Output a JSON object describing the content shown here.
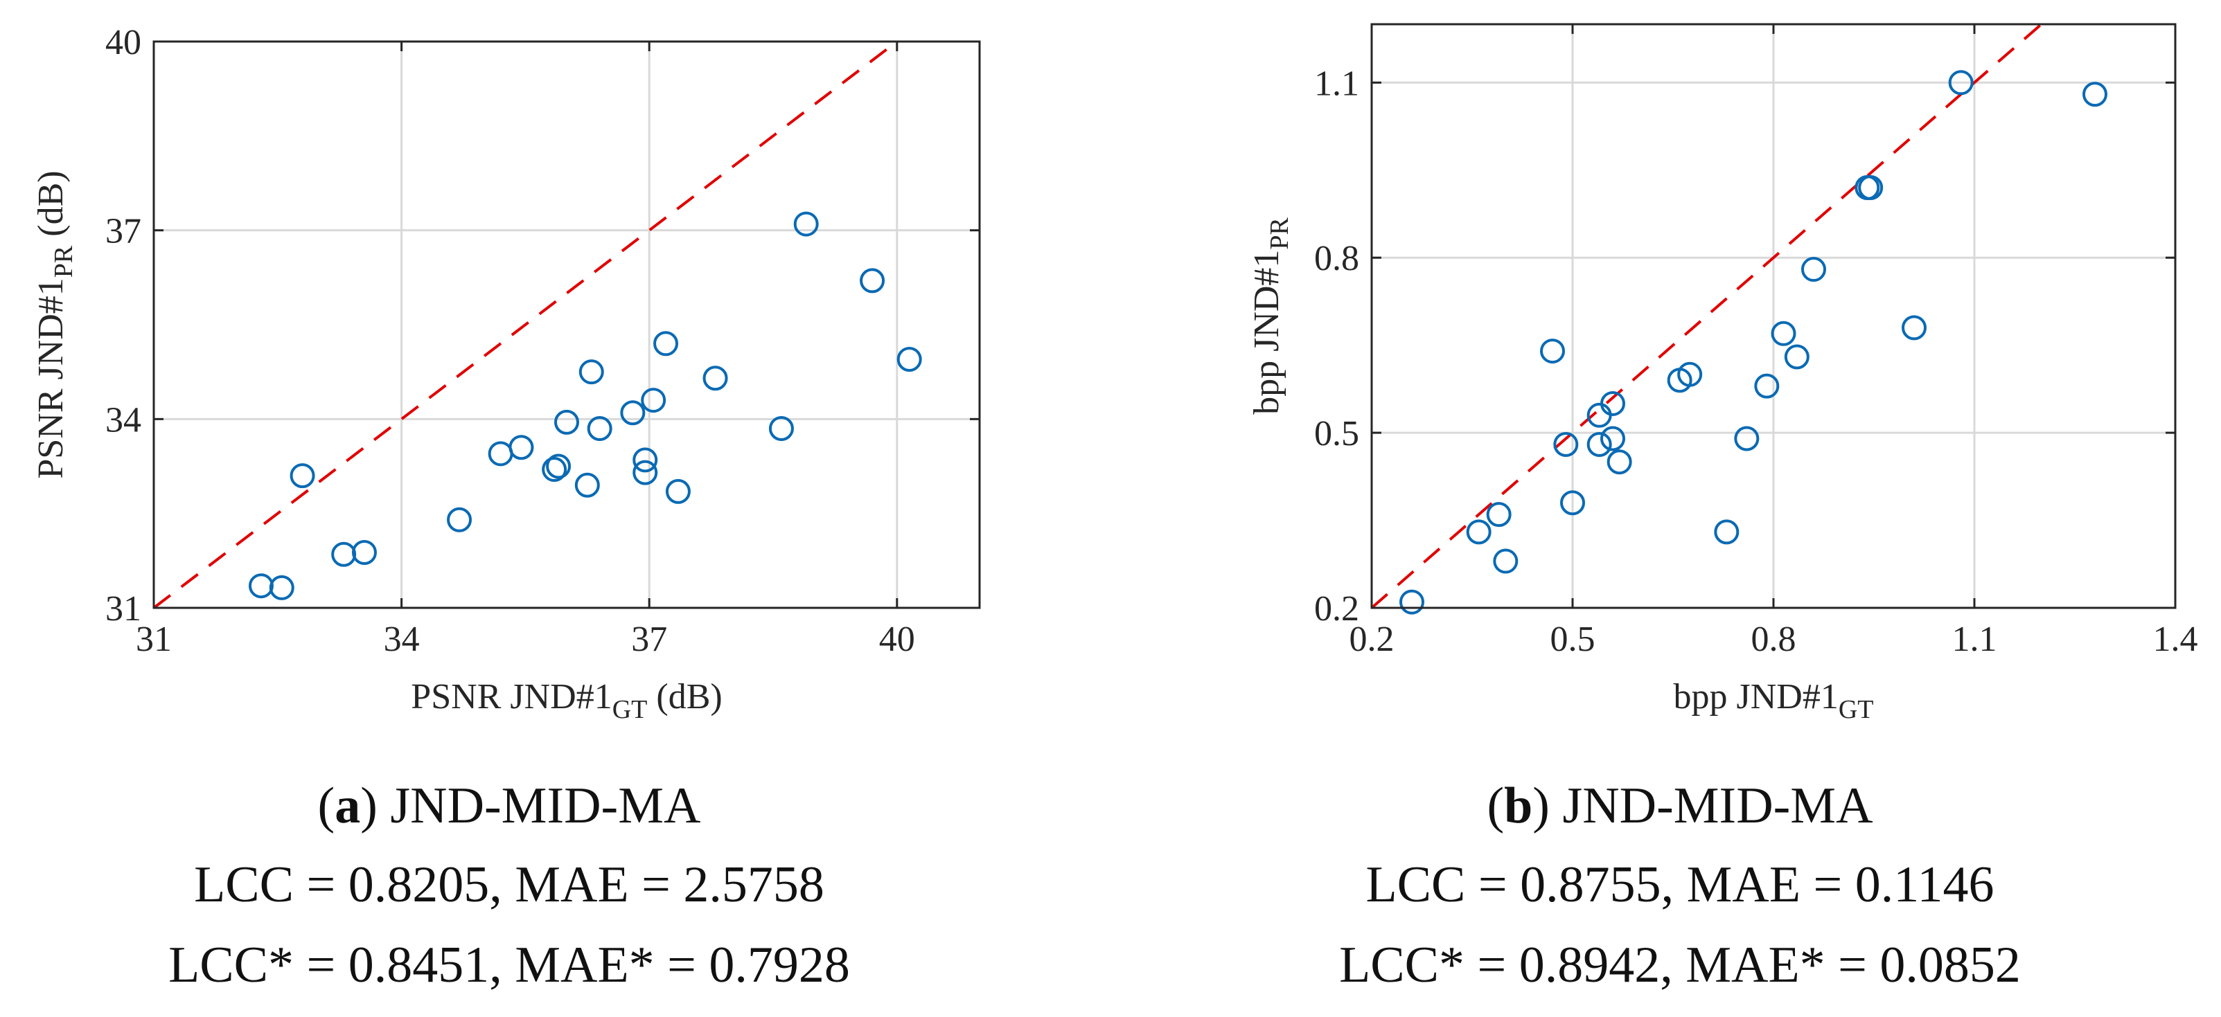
{
  "chart_data": [
    {
      "type": "scatter",
      "panel": "a",
      "caption_letter": "a",
      "caption_name": "JND-MID-MA",
      "stats_line1": "LCC = 0.8205, MAE = 2.5758",
      "stats_line2": "LCC* = 0.8451, MAE* = 0.7928",
      "xlabel_main": "PSNR JND#1",
      "xlabel_sub": "GT",
      "xlabel_suffix": " (dB)",
      "ylabel_main": "PSNR JND#1",
      "ylabel_sub": "PR",
      "ylabel_suffix": " (dB)",
      "xlim": [
        31,
        41
      ],
      "ylim": [
        31,
        40
      ],
      "xticks": [
        31,
        34,
        37,
        40
      ],
      "yticks": [
        31,
        34,
        37,
        40
      ],
      "xtick_labels": [
        "31",
        "34",
        "37",
        "40"
      ],
      "ytick_labels": [
        "31",
        "34",
        "37",
        "40"
      ],
      "grid": true,
      "reference_line": "y = x",
      "points": [
        {
          "x": 32.3,
          "y": 31.35
        },
        {
          "x": 32.55,
          "y": 31.32
        },
        {
          "x": 32.8,
          "y": 33.1
        },
        {
          "x": 33.3,
          "y": 31.85
        },
        {
          "x": 33.55,
          "y": 31.88
        },
        {
          "x": 34.7,
          "y": 32.4
        },
        {
          "x": 35.2,
          "y": 33.45
        },
        {
          "x": 35.45,
          "y": 33.55
        },
        {
          "x": 35.85,
          "y": 33.2
        },
        {
          "x": 35.9,
          "y": 33.25
        },
        {
          "x": 36.0,
          "y": 33.95
        },
        {
          "x": 36.25,
          "y": 32.95
        },
        {
          "x": 36.3,
          "y": 34.75
        },
        {
          "x": 36.4,
          "y": 33.85
        },
        {
          "x": 36.8,
          "y": 34.1
        },
        {
          "x": 36.95,
          "y": 33.15
        },
        {
          "x": 36.95,
          "y": 33.35
        },
        {
          "x": 37.05,
          "y": 34.3
        },
        {
          "x": 37.2,
          "y": 35.2
        },
        {
          "x": 37.35,
          "y": 32.85
        },
        {
          "x": 37.8,
          "y": 34.65
        },
        {
          "x": 38.6,
          "y": 33.85
        },
        {
          "x": 38.9,
          "y": 37.1
        },
        {
          "x": 39.7,
          "y": 36.2
        },
        {
          "x": 40.15,
          "y": 34.95
        }
      ]
    },
    {
      "type": "scatter",
      "panel": "b",
      "caption_letter": "b",
      "caption_name": "JND-MID-MA",
      "stats_line1": "LCC = 0.8755, MAE = 0.1146",
      "stats_line2": "LCC* = 0.8942, MAE* = 0.0852",
      "xlabel_main": "bpp JND#1",
      "xlabel_sub": "GT",
      "xlabel_suffix": "",
      "ylabel_main": "bpp JND#1",
      "ylabel_sub": "PR",
      "ylabel_suffix": "",
      "xlim": [
        0.2,
        1.4
      ],
      "ylim": [
        0.2,
        1.2
      ],
      "xticks": [
        0.2,
        0.5,
        0.8,
        1.1,
        1.4
      ],
      "yticks": [
        0.2,
        0.5,
        0.8,
        1.1
      ],
      "xtick_labels": [
        "0.2",
        "0.5",
        "0.8",
        "1.1",
        "1.4"
      ],
      "ytick_labels": [
        "0.2",
        "0.5",
        "0.8",
        "1.1"
      ],
      "grid": true,
      "reference_line": "y = x",
      "points": [
        {
          "x": 0.26,
          "y": 0.21
        },
        {
          "x": 0.36,
          "y": 0.33
        },
        {
          "x": 0.39,
          "y": 0.36
        },
        {
          "x": 0.4,
          "y": 0.28
        },
        {
          "x": 0.47,
          "y": 0.64
        },
        {
          "x": 0.49,
          "y": 0.48
        },
        {
          "x": 0.5,
          "y": 0.38
        },
        {
          "x": 0.54,
          "y": 0.53
        },
        {
          "x": 0.54,
          "y": 0.48
        },
        {
          "x": 0.56,
          "y": 0.49
        },
        {
          "x": 0.56,
          "y": 0.55
        },
        {
          "x": 0.57,
          "y": 0.45
        },
        {
          "x": 0.66,
          "y": 0.59
        },
        {
          "x": 0.675,
          "y": 0.6
        },
        {
          "x": 0.73,
          "y": 0.33
        },
        {
          "x": 0.76,
          "y": 0.49
        },
        {
          "x": 0.79,
          "y": 0.58
        },
        {
          "x": 0.815,
          "y": 0.67
        },
        {
          "x": 0.835,
          "y": 0.63
        },
        {
          "x": 0.86,
          "y": 0.78
        },
        {
          "x": 0.94,
          "y": 0.92
        },
        {
          "x": 0.945,
          "y": 0.92
        },
        {
          "x": 1.01,
          "y": 0.68
        },
        {
          "x": 1.08,
          "y": 1.1
        },
        {
          "x": 1.28,
          "y": 1.08
        }
      ]
    }
  ]
}
